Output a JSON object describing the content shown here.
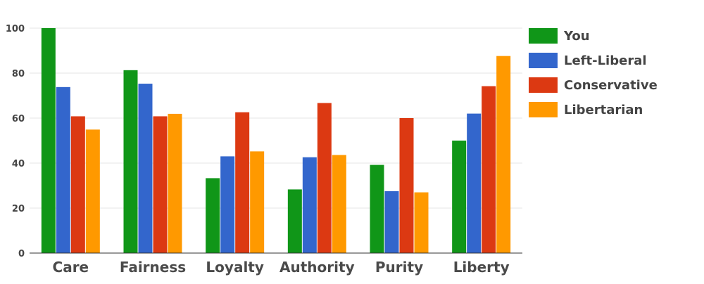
{
  "chart_data": {
    "type": "bar",
    "categories": [
      "Care",
      "Fairness",
      "Loyalty",
      "Authority",
      "Purity",
      "Liberty"
    ],
    "series": [
      {
        "name": "You",
        "color": "#109618",
        "values": [
          100,
          81.3,
          33.3,
          28.3,
          39.2,
          50
        ]
      },
      {
        "name": "Left-Liberal",
        "color": "#3366cc",
        "values": [
          73.8,
          75.3,
          43,
          42.6,
          27.5,
          62
        ]
      },
      {
        "name": "Conservative",
        "color": "#dc3912",
        "values": [
          60.8,
          60.8,
          62.6,
          66.7,
          60,
          74.2
        ]
      },
      {
        "name": "Libertarian",
        "color": "#ff9900",
        "values": [
          54.9,
          61.9,
          45.2,
          43.6,
          27,
          87.6
        ]
      }
    ],
    "ylim": [
      0,
      100
    ],
    "yticks": [
      "0",
      "20",
      "40",
      "60",
      "80",
      "100"
    ],
    "grid": true,
    "legend_position": "right",
    "title": "",
    "xlabel": "",
    "ylabel": ""
  }
}
